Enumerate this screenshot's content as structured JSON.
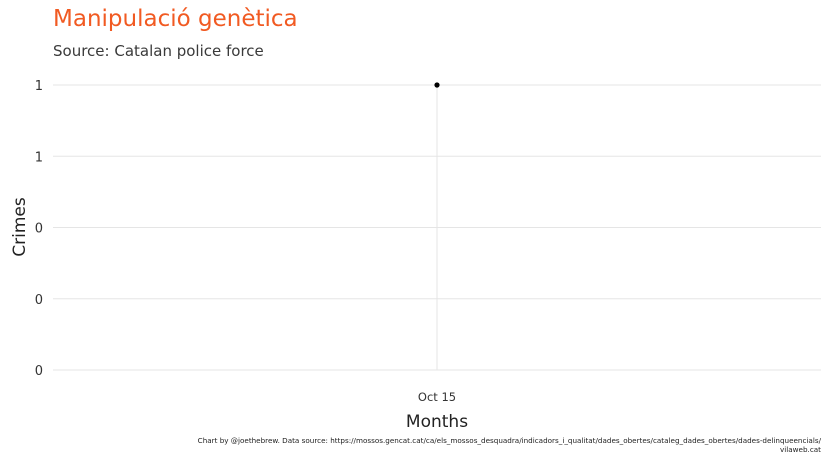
{
  "chart_data": {
    "type": "line",
    "title": "Manipulació genètica",
    "subtitle": "Source: Catalan police force",
    "xlabel": "Months",
    "ylabel": "Crimes",
    "x_ticks": [
      "Oct 15"
    ],
    "y_ticks": [
      "0",
      "0",
      "0",
      "1",
      "1"
    ],
    "ylim": [
      0,
      1
    ],
    "grid": true,
    "series": [
      {
        "x": [
          "Oct 15"
        ],
        "values": [
          1
        ]
      }
    ],
    "colors": {
      "title": "#f15a22",
      "point": "#000000",
      "grid": "#e5e5e5"
    }
  },
  "caption": {
    "line1": "Chart by @joethebrew. Data source: https://mossos.gencat.cat/ca/els_mossos_desquadra/indicadors_i_qualitat/dades_obertes/cataleg_dades_obertes/dades-delinqueencials/",
    "line2": "vilaweb.cat"
  }
}
